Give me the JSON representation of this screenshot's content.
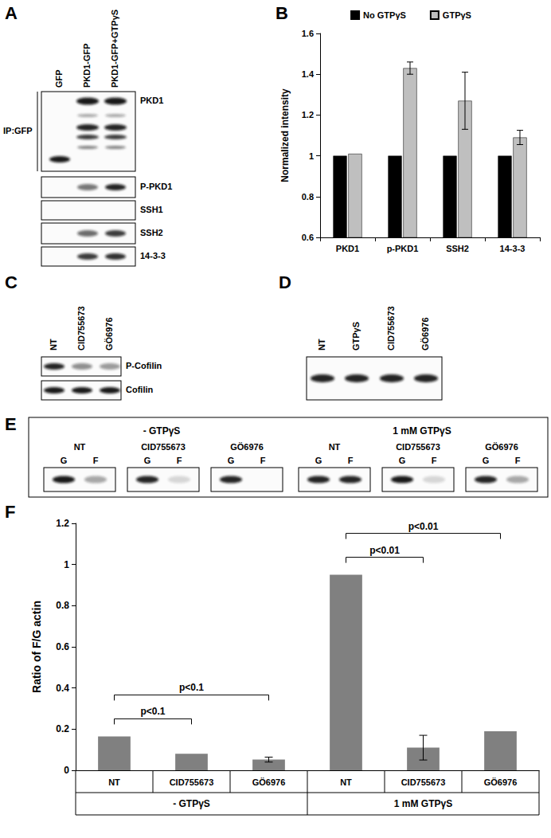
{
  "figure": {
    "A": {
      "panel": "A",
      "lanes": [
        "GFP",
        "PKD1-GFP",
        "PKD1-GFP+GTPγS"
      ],
      "group_label": "IP:GFP",
      "rows": [
        "PKD1",
        "P-PKD1",
        "SSH1",
        "SSH2",
        "14-3-3"
      ]
    },
    "C": {
      "panel": "C",
      "lanes": [
        "NT",
        "CID755673",
        "GÖ6976"
      ],
      "rows": [
        "P-Cofilin",
        "Cofilin"
      ]
    },
    "D": {
      "panel": "D",
      "lanes": [
        "NT",
        "GTPγS",
        "CID755673",
        "GÖ6976"
      ]
    },
    "E": {
      "panel": "E",
      "conditions": [
        {
          "label": "- GTPγS",
          "treatments": [
            "NT",
            "CID755673",
            "GÖ6976"
          ]
        },
        {
          "label": "1 mM GTPγS",
          "treatments": [
            "NT",
            "CID755673",
            "GÖ6976"
          ]
        }
      ],
      "fractions": [
        "G",
        "F"
      ]
    }
  },
  "chart_data": [
    {
      "panel": "B",
      "type": "bar",
      "categories": [
        "PKD1",
        "p-PKD1",
        "SSH2",
        "14-3-3"
      ],
      "series": [
        {
          "name": "No GTPγS",
          "color": "#000000",
          "values": [
            1,
            1,
            1,
            1
          ]
        },
        {
          "name": "GTPγS",
          "color": "#bfbfbf",
          "values": [
            1.01,
            1.43,
            1.27,
            1.09
          ],
          "errors": [
            null,
            0.03,
            0.14,
            0.035
          ]
        }
      ],
      "ylabel": "Normalized intensity",
      "ylim": [
        0.6,
        1.6
      ],
      "yticks": [
        0.6,
        0.8,
        1,
        1.2,
        1.4,
        1.6
      ],
      "legend": "top",
      "grid": false
    },
    {
      "panel": "F",
      "type": "bar",
      "categories": [
        "NT",
        "CID755673",
        "GÖ6976",
        "NT",
        "CID755673",
        "GÖ6976"
      ],
      "groups": [
        "- GTPγS",
        "1 mM GTPγS"
      ],
      "values": [
        0.165,
        0.08,
        0.052,
        0.95,
        0.11,
        0.19
      ],
      "errors": [
        null,
        null,
        0.012,
        null,
        0.06,
        null
      ],
      "color": "#808080",
      "ylabel": "Ratio of F/G actin",
      "ylim": [
        0,
        1.2
      ],
      "yticks": [
        0,
        0.2,
        0.4,
        0.6,
        0.8,
        1,
        1.2
      ],
      "grid": false,
      "annotations": [
        {
          "text": "p<0.1",
          "group": "- GTPγS",
          "from": "NT",
          "to": "CID755673"
        },
        {
          "text": "p<0.1",
          "group": "- GTPγS",
          "from": "NT",
          "to": "GÖ6976"
        },
        {
          "text": "p<0.01",
          "group": "1 mM GTPγS",
          "from": "NT",
          "to": "CID755673"
        },
        {
          "text": "p<0.01",
          "group": "1 mM GTPγS",
          "from": "NT",
          "to": "GÖ6976"
        }
      ]
    }
  ]
}
